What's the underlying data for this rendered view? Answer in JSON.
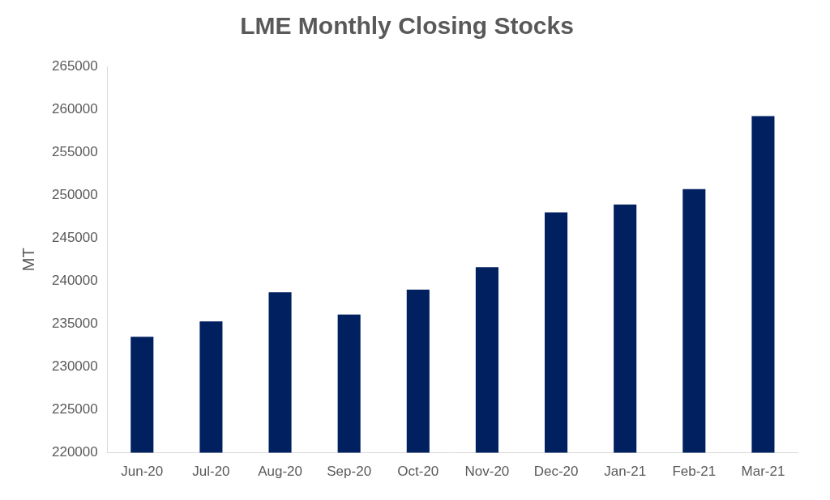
{
  "chart_data": {
    "type": "bar",
    "title": "LME Monthly Closing Stocks",
    "y_label": "MT",
    "categories": [
      "Jun-20",
      "Jul-20",
      "Aug-20",
      "Sep-20",
      "Oct-20",
      "Nov-20",
      "Dec-20",
      "Jan-21",
      "Feb-21",
      "Mar-21"
    ],
    "values": [
      233500,
      235300,
      238700,
      236100,
      239000,
      241600,
      248000,
      248900,
      250700,
      259200
    ],
    "color": "#002060",
    "ylim": [
      220000,
      265000
    ],
    "yticks": [
      220000,
      225000,
      230000,
      235000,
      240000,
      245000,
      250000,
      255000,
      260000,
      265000
    ],
    "grid": false
  }
}
